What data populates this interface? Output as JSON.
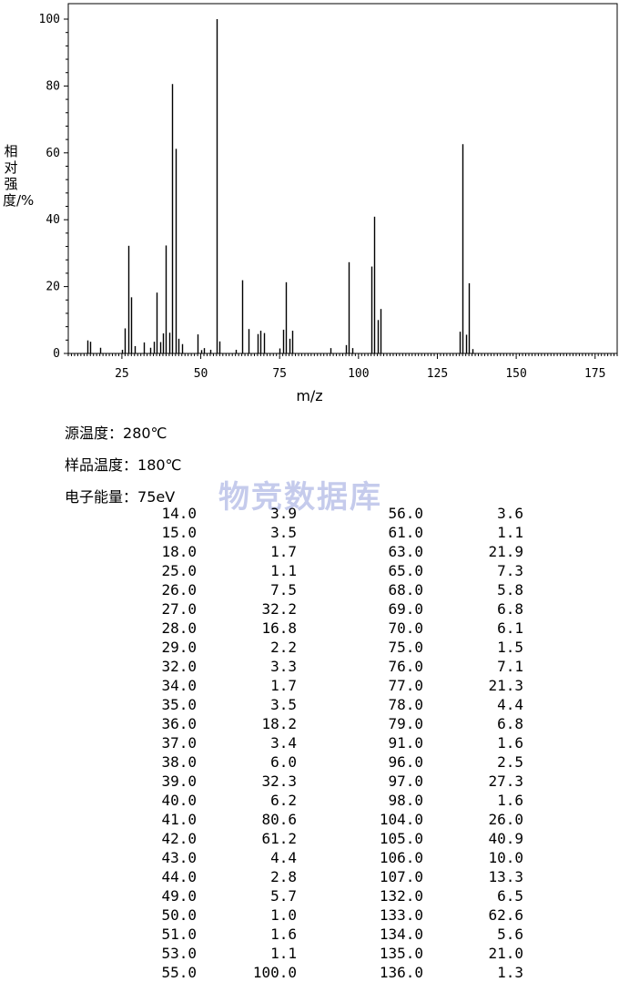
{
  "chart_data": {
    "type": "bar",
    "xlabel": "m/z",
    "ylabel": "相对强度/%",
    "xlim": [
      8,
      182
    ],
    "ylim": [
      0,
      100
    ],
    "x_ticks": [
      "25",
      "50",
      "75",
      "100",
      "125",
      "150",
      "175"
    ],
    "y_ticks": [
      "0",
      "20",
      "40",
      "60",
      "80",
      "100"
    ],
    "peaks": [
      {
        "mz": 14.0,
        "ab": 3.9
      },
      {
        "mz": 15.0,
        "ab": 3.5
      },
      {
        "mz": 18.0,
        "ab": 1.7
      },
      {
        "mz": 25.0,
        "ab": 1.1
      },
      {
        "mz": 26.0,
        "ab": 7.5
      },
      {
        "mz": 27.0,
        "ab": 32.2
      },
      {
        "mz": 28.0,
        "ab": 16.8
      },
      {
        "mz": 29.0,
        "ab": 2.2
      },
      {
        "mz": 32.0,
        "ab": 3.3
      },
      {
        "mz": 34.0,
        "ab": 1.7
      },
      {
        "mz": 35.0,
        "ab": 3.5
      },
      {
        "mz": 36.0,
        "ab": 18.2
      },
      {
        "mz": 37.0,
        "ab": 3.4
      },
      {
        "mz": 38.0,
        "ab": 6.0
      },
      {
        "mz": 39.0,
        "ab": 32.3
      },
      {
        "mz": 40.0,
        "ab": 6.2
      },
      {
        "mz": 41.0,
        "ab": 80.6
      },
      {
        "mz": 42.0,
        "ab": 61.2
      },
      {
        "mz": 43.0,
        "ab": 4.4
      },
      {
        "mz": 44.0,
        "ab": 2.8
      },
      {
        "mz": 49.0,
        "ab": 5.7
      },
      {
        "mz": 50.0,
        "ab": 1.0
      },
      {
        "mz": 51.0,
        "ab": 1.6
      },
      {
        "mz": 53.0,
        "ab": 1.1
      },
      {
        "mz": 55.0,
        "ab": 100.0
      },
      {
        "mz": 56.0,
        "ab": 3.6
      },
      {
        "mz": 61.0,
        "ab": 1.1
      },
      {
        "mz": 63.0,
        "ab": 21.9
      },
      {
        "mz": 65.0,
        "ab": 7.3
      },
      {
        "mz": 68.0,
        "ab": 5.8
      },
      {
        "mz": 69.0,
        "ab": 6.8
      },
      {
        "mz": 70.0,
        "ab": 6.1
      },
      {
        "mz": 75.0,
        "ab": 1.5
      },
      {
        "mz": 76.0,
        "ab": 7.1
      },
      {
        "mz": 77.0,
        "ab": 21.3
      },
      {
        "mz": 78.0,
        "ab": 4.4
      },
      {
        "mz": 79.0,
        "ab": 6.8
      },
      {
        "mz": 91.0,
        "ab": 1.6
      },
      {
        "mz": 96.0,
        "ab": 2.5
      },
      {
        "mz": 97.0,
        "ab": 27.3
      },
      {
        "mz": 98.0,
        "ab": 1.6
      },
      {
        "mz": 104.0,
        "ab": 26.0
      },
      {
        "mz": 105.0,
        "ab": 40.9
      },
      {
        "mz": 106.0,
        "ab": 10.0
      },
      {
        "mz": 107.0,
        "ab": 13.3
      },
      {
        "mz": 132.0,
        "ab": 6.5
      },
      {
        "mz": 133.0,
        "ab": 62.6
      },
      {
        "mz": 134.0,
        "ab": 5.6
      },
      {
        "mz": 135.0,
        "ab": 21.0
      },
      {
        "mz": 136.0,
        "ab": 1.3
      }
    ]
  },
  "conditions": {
    "source_temp_label": "源温度：",
    "source_temp_value": "280℃",
    "sample_temp_label": "样品温度：",
    "sample_temp_value": "180℃",
    "electron_energy_label": "电子能量：",
    "electron_energy_value": "75eV"
  },
  "watermark": "物竞数据库",
  "table": {
    "left": [
      [
        "14.0",
        "3.9"
      ],
      [
        "15.0",
        "3.5"
      ],
      [
        "18.0",
        "1.7"
      ],
      [
        "25.0",
        "1.1"
      ],
      [
        "26.0",
        "7.5"
      ],
      [
        "27.0",
        "32.2"
      ],
      [
        "28.0",
        "16.8"
      ],
      [
        "29.0",
        "2.2"
      ],
      [
        "32.0",
        "3.3"
      ],
      [
        "34.0",
        "1.7"
      ],
      [
        "35.0",
        "3.5"
      ],
      [
        "36.0",
        "18.2"
      ],
      [
        "37.0",
        "3.4"
      ],
      [
        "38.0",
        "6.0"
      ],
      [
        "39.0",
        "32.3"
      ],
      [
        "40.0",
        "6.2"
      ],
      [
        "41.0",
        "80.6"
      ],
      [
        "42.0",
        "61.2"
      ],
      [
        "43.0",
        "4.4"
      ],
      [
        "44.0",
        "2.8"
      ],
      [
        "49.0",
        "5.7"
      ],
      [
        "50.0",
        "1.0"
      ],
      [
        "51.0",
        "1.6"
      ],
      [
        "53.0",
        "1.1"
      ],
      [
        "55.0",
        "100.0"
      ]
    ],
    "right": [
      [
        "56.0",
        "3.6"
      ],
      [
        "61.0",
        "1.1"
      ],
      [
        "63.0",
        "21.9"
      ],
      [
        "65.0",
        "7.3"
      ],
      [
        "68.0",
        "5.8"
      ],
      [
        "69.0",
        "6.8"
      ],
      [
        "70.0",
        "6.1"
      ],
      [
        "75.0",
        "1.5"
      ],
      [
        "76.0",
        "7.1"
      ],
      [
        "77.0",
        "21.3"
      ],
      [
        "78.0",
        "4.4"
      ],
      [
        "79.0",
        "6.8"
      ],
      [
        "91.0",
        "1.6"
      ],
      [
        "96.0",
        "2.5"
      ],
      [
        "97.0",
        "27.3"
      ],
      [
        "98.0",
        "1.6"
      ],
      [
        "104.0",
        "26.0"
      ],
      [
        "105.0",
        "40.9"
      ],
      [
        "106.0",
        "10.0"
      ],
      [
        "107.0",
        "13.3"
      ],
      [
        "132.0",
        "6.5"
      ],
      [
        "133.0",
        "62.6"
      ],
      [
        "134.0",
        "5.6"
      ],
      [
        "135.0",
        "21.0"
      ],
      [
        "136.0",
        "1.3"
      ]
    ]
  }
}
